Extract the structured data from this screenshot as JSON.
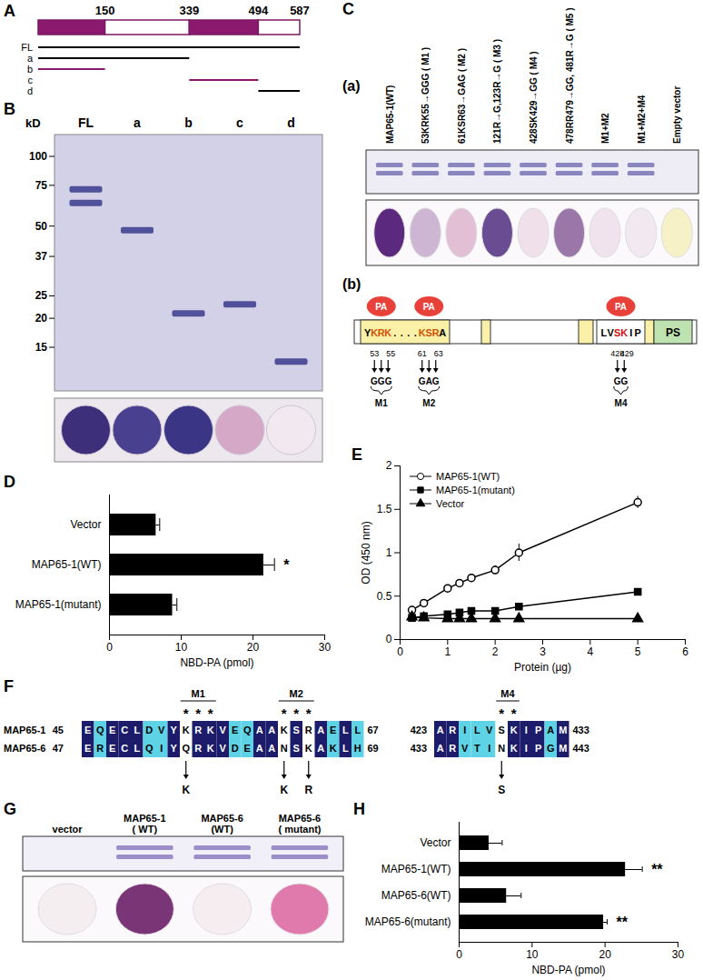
{
  "panels": {
    "A": {
      "label": "A",
      "length": 587,
      "ticks": [
        150,
        339,
        494,
        587
      ],
      "segments": [
        {
          "start": 0,
          "end": 150,
          "color": "#8b1a6e"
        },
        {
          "start": 150,
          "end": 339,
          "color": "#ffffff"
        },
        {
          "start": 339,
          "end": 494,
          "color": "#8b1a6e"
        },
        {
          "start": 494,
          "end": 587,
          "color": "#ffffff"
        }
      ],
      "constructs": [
        {
          "name": "FL",
          "start": 0,
          "end": 587,
          "color": "#000000"
        },
        {
          "name": "a",
          "start": 0,
          "end": 339,
          "color": "#000000"
        },
        {
          "name": "b",
          "start": 0,
          "end": 150,
          "color": "#8b1a6e"
        },
        {
          "name": "c",
          "start": 339,
          "end": 494,
          "color": "#8b1a6e"
        },
        {
          "name": "d",
          "start": 494,
          "end": 587,
          "color": "#000000"
        }
      ]
    },
    "B": {
      "label": "B",
      "axis_label": "kD",
      "markers": [
        100,
        75,
        50,
        37,
        25,
        20,
        15
      ],
      "lanes": [
        {
          "name": "FL",
          "bands": [
            72,
            63
          ],
          "dot_color": "#3d2f7a"
        },
        {
          "name": "a",
          "bands": [
            48
          ],
          "dot_color": "#4a4090"
        },
        {
          "name": "b",
          "bands": [
            21
          ],
          "dot_color": "#3b3585"
        },
        {
          "name": "c",
          "bands": [
            23
          ],
          "dot_color": "#d6a8c8"
        },
        {
          "name": "d",
          "bands": [
            13
          ],
          "dot_color": "#f1e8f0"
        }
      ]
    },
    "C": {
      "label": "C",
      "part_a": {
        "label": "(a)",
        "lanes": [
          {
            "name": "MAP65-1(WT)",
            "bands": 2,
            "dot_color": "#5b2a7e"
          },
          {
            "name": "53KRK55→GGG ( M1 )",
            "bands": 2,
            "dot_color": "#cdb6d3"
          },
          {
            "name": "61KSR63→GAG ( M2 )",
            "bands": 2,
            "dot_color": "#e2bfd4"
          },
          {
            "name": "121R→G,123R→G ( M3 )",
            "bands": 2,
            "dot_color": "#6a4c93"
          },
          {
            "name": "428SK429→GG ( M4 )",
            "bands": 2,
            "dot_color": "#efe0ea"
          },
          {
            "name": "478RR479→GG, 481R→G ( M5 )",
            "bands": 2,
            "dot_color": "#9a77a8"
          },
          {
            "name": "M1+M2",
            "bands": 2,
            "dot_color": "#f0e3ee"
          },
          {
            "name": "M1+M2+M4",
            "bands": 2,
            "dot_color": "#f2e8f0"
          },
          {
            "name": "Empty vector",
            "bands": 0,
            "dot_color": "#f7f1c8"
          }
        ]
      },
      "part_b": {
        "label": "(b)",
        "binding_label": "PA",
        "domain_label": "PS",
        "motifs": [
          {
            "segments": [
              {
                "text": "Y",
                "color": "#000000"
              },
              {
                "text": "KRK",
                "color": "#d35400",
                "site": "M1"
              },
              {
                "text": "....",
                "color": "#000000"
              },
              {
                "text": "KSR",
                "color": "#d35400",
                "site": "M2"
              },
              {
                "text": "A",
                "color": "#000000"
              }
            ]
          },
          {
            "segments": [
              {
                "text": "LV",
                "color": "#000000"
              },
              {
                "text": "SK",
                "color": "#d01010",
                "site": "M4"
              },
              {
                "text": "IP",
                "color": "#000000"
              }
            ]
          }
        ],
        "sites": [
          {
            "label": "M1",
            "start": 53,
            "end": 55,
            "replacement": "GGG"
          },
          {
            "label": "M2",
            "start": 61,
            "end": 63,
            "replacement": "GAG"
          },
          {
            "label": "M4",
            "start": 428,
            "end": 429,
            "replacement": "GG"
          }
        ]
      }
    },
    "F": {
      "label": "F",
      "marker_text": "*",
      "blocks": [
        {
          "rows": [
            {
              "name": "MAP65-1",
              "start": 45,
              "end": 67,
              "sequence": "EQECLDVYKRKVEQAAKSRAELL"
            },
            {
              "name": "MAP65-6",
              "start": 47,
              "end": 69,
              "sequence": "ERECLQIYQRKVDEAANSKAKLH"
            }
          ]
        },
        {
          "rows": [
            {
              "start": 423,
              "end": 433,
              "sequence": "ARILVSKIPAM"
            },
            {
              "start": 433,
              "end": 443,
              "sequence": "ARVTINKIPGM"
            }
          ]
        }
      ],
      "mutations": [
        {
          "label": "M1",
          "positions": [
            53,
            54,
            55
          ]
        },
        {
          "label": "M2",
          "positions": [
            61,
            62,
            63
          ]
        },
        {
          "label": "M4",
          "positions": [
            428,
            429
          ]
        }
      ],
      "substitutions": [
        {
          "position": 53,
          "label": "K"
        },
        {
          "position": 61,
          "label": "K"
        },
        {
          "position": 63,
          "label": "R"
        },
        {
          "position": 428,
          "label": "S"
        }
      ]
    },
    "G": {
      "label": "G",
      "lanes": [
        {
          "name_lines": [
            "vector"
          ],
          "bands": 0,
          "dot_color": "#f5eef0"
        },
        {
          "name_lines": [
            "MAP65-1",
            "( WT)"
          ],
          "bands": 2,
          "dot_color": "#7a3577"
        },
        {
          "name_lines": [
            "MAP65-6",
            "(WT)"
          ],
          "bands": 2,
          "dot_color": "#f6edf1"
        },
        {
          "name_lines": [
            "MAP65-6",
            "( mutant)"
          ],
          "bands": 2,
          "dot_color": "#e07aac"
        }
      ]
    }
  },
  "chart_data": [
    {
      "title": "D",
      "type": "bar",
      "orientation": "horizontal",
      "categories": [
        "Vector",
        "MAP65-1(WT)",
        "MAP65-1(mutant)"
      ],
      "values": [
        6.5,
        21.5,
        8.8
      ],
      "errors": [
        0.5,
        1.5,
        0.6
      ],
      "annotations": [
        {
          "category": "MAP65-1(WT)",
          "text": "*"
        }
      ],
      "x_label": "NBD-PA (pmol)",
      "xlim": [
        0,
        30
      ],
      "xticks": [
        0,
        10,
        20,
        30
      ],
      "color": "#000000"
    },
    {
      "title": "E",
      "type": "line",
      "legend": "top-left",
      "x_label": "Protein (µg)",
      "y_label": "OD (450 nm)",
      "xlim": [
        0,
        6
      ],
      "xticks": [
        0,
        1,
        2,
        3,
        4,
        5,
        6
      ],
      "ylim": [
        0,
        2
      ],
      "yticks": [
        0,
        0.5,
        1,
        1.5,
        2
      ],
      "x": [
        0.25,
        0.5,
        1,
        1.25,
        1.5,
        2,
        2.5,
        5
      ],
      "series": [
        {
          "name": "MAP65-1(WT)",
          "color": "#000000",
          "marker": "circle-open",
          "values": [
            0.34,
            0.42,
            0.59,
            0.65,
            0.71,
            0.8,
            1.0,
            1.58
          ],
          "errors": [
            0.02,
            0.03,
            0.03,
            0.03,
            0.04,
            0.05,
            0.1,
            0.07
          ]
        },
        {
          "name": "MAP65-1(mutant)",
          "color": "#000000",
          "marker": "square",
          "values": [
            0.25,
            0.27,
            0.29,
            0.31,
            0.33,
            0.33,
            0.38,
            0.55
          ]
        },
        {
          "name": "Vector",
          "color": "#000000",
          "marker": "triangle",
          "values": [
            0.26,
            0.25,
            0.24,
            0.24,
            0.24,
            0.24,
            0.24,
            0.24
          ]
        }
      ]
    },
    {
      "title": "H",
      "type": "bar",
      "orientation": "horizontal",
      "categories": [
        "Vector",
        "MAP65-1(WT)",
        "MAP65-6(WT)",
        "MAP65-6(mutant)"
      ],
      "values": [
        4.1,
        22.8,
        6.5,
        19.8
      ],
      "errors": [
        1.8,
        2.3,
        2.0,
        0.5
      ],
      "annotations": [
        {
          "category": "MAP65-1(WT)",
          "text": "**"
        },
        {
          "category": "MAP65-6(mutant)",
          "text": "**"
        }
      ],
      "x_label": "NBD-PA (pmol)",
      "xlim": [
        0,
        30
      ],
      "xticks": [
        0,
        10,
        20,
        30
      ],
      "color": "#000000"
    }
  ]
}
